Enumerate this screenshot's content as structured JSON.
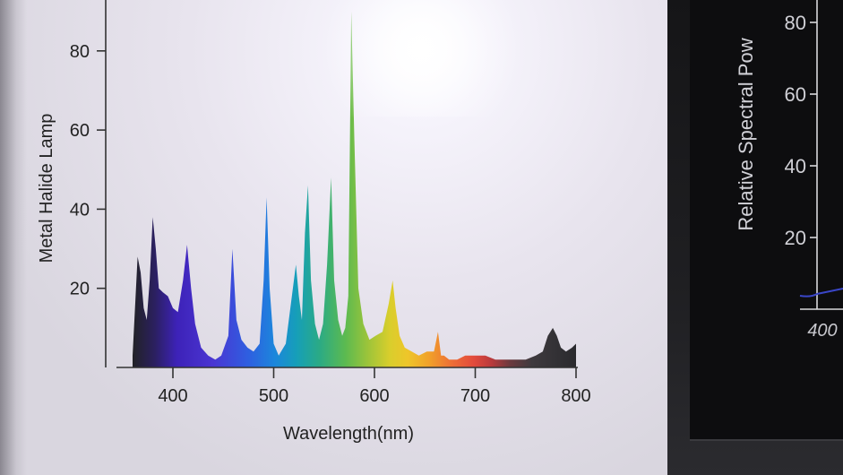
{
  "chart_data": [
    {
      "type": "area",
      "title": "",
      "xlabel": "Wavelength(nm)",
      "ylabel": "Metal Halide Lamp",
      "xlim": [
        360,
        800
      ],
      "ylim": [
        0,
        90
      ],
      "x_ticks": [
        400,
        500,
        600,
        700,
        800
      ],
      "y_ticks": [
        20,
        40,
        60,
        80
      ],
      "grid": false,
      "series": [
        {
          "x": [
            360,
            365,
            368,
            371,
            374,
            377,
            380,
            383,
            386,
            390,
            395,
            400,
            405,
            410,
            414,
            418,
            422,
            428,
            435,
            442,
            448,
            455,
            459,
            463,
            468,
            474,
            480,
            486,
            490,
            493,
            496,
            500,
            505,
            512,
            518,
            522,
            525,
            528,
            531,
            534,
            537,
            541,
            545,
            549,
            553,
            557,
            560,
            564,
            568,
            571,
            574,
            577,
            580,
            584,
            589,
            595,
            601,
            608,
            614,
            618,
            621,
            625,
            630,
            637,
            644,
            652,
            659,
            663,
            666,
            669,
            674,
            682,
            690,
            700,
            710,
            720,
            730,
            740,
            750,
            760,
            767,
            772,
            777,
            781,
            785,
            790,
            796,
            800
          ],
          "y": [
            3,
            28,
            24,
            15,
            12,
            22,
            38,
            30,
            20,
            19,
            18,
            15,
            14,
            22,
            31,
            20,
            11,
            5,
            3,
            2,
            3,
            8,
            30,
            12,
            7,
            5,
            4,
            6,
            22,
            43,
            20,
            6,
            3,
            6,
            18,
            26,
            18,
            12,
            34,
            46,
            22,
            11,
            7,
            11,
            26,
            48,
            22,
            12,
            8,
            10,
            18,
            90,
            58,
            20,
            11,
            7,
            8,
            9,
            16,
            22,
            15,
            8,
            5,
            4,
            3,
            4,
            4,
            9,
            3,
            3,
            2,
            2,
            3,
            3,
            3,
            2,
            2,
            2,
            2,
            3,
            4,
            8,
            10,
            8,
            5,
            4,
            5,
            6
          ]
        }
      ]
    },
    {
      "type": "line",
      "title": "",
      "ylabel": "Relative Spectral Pow",
      "y_ticks": [
        20,
        40,
        60,
        80
      ],
      "x_ticks": [
        400
      ]
    }
  ]
}
